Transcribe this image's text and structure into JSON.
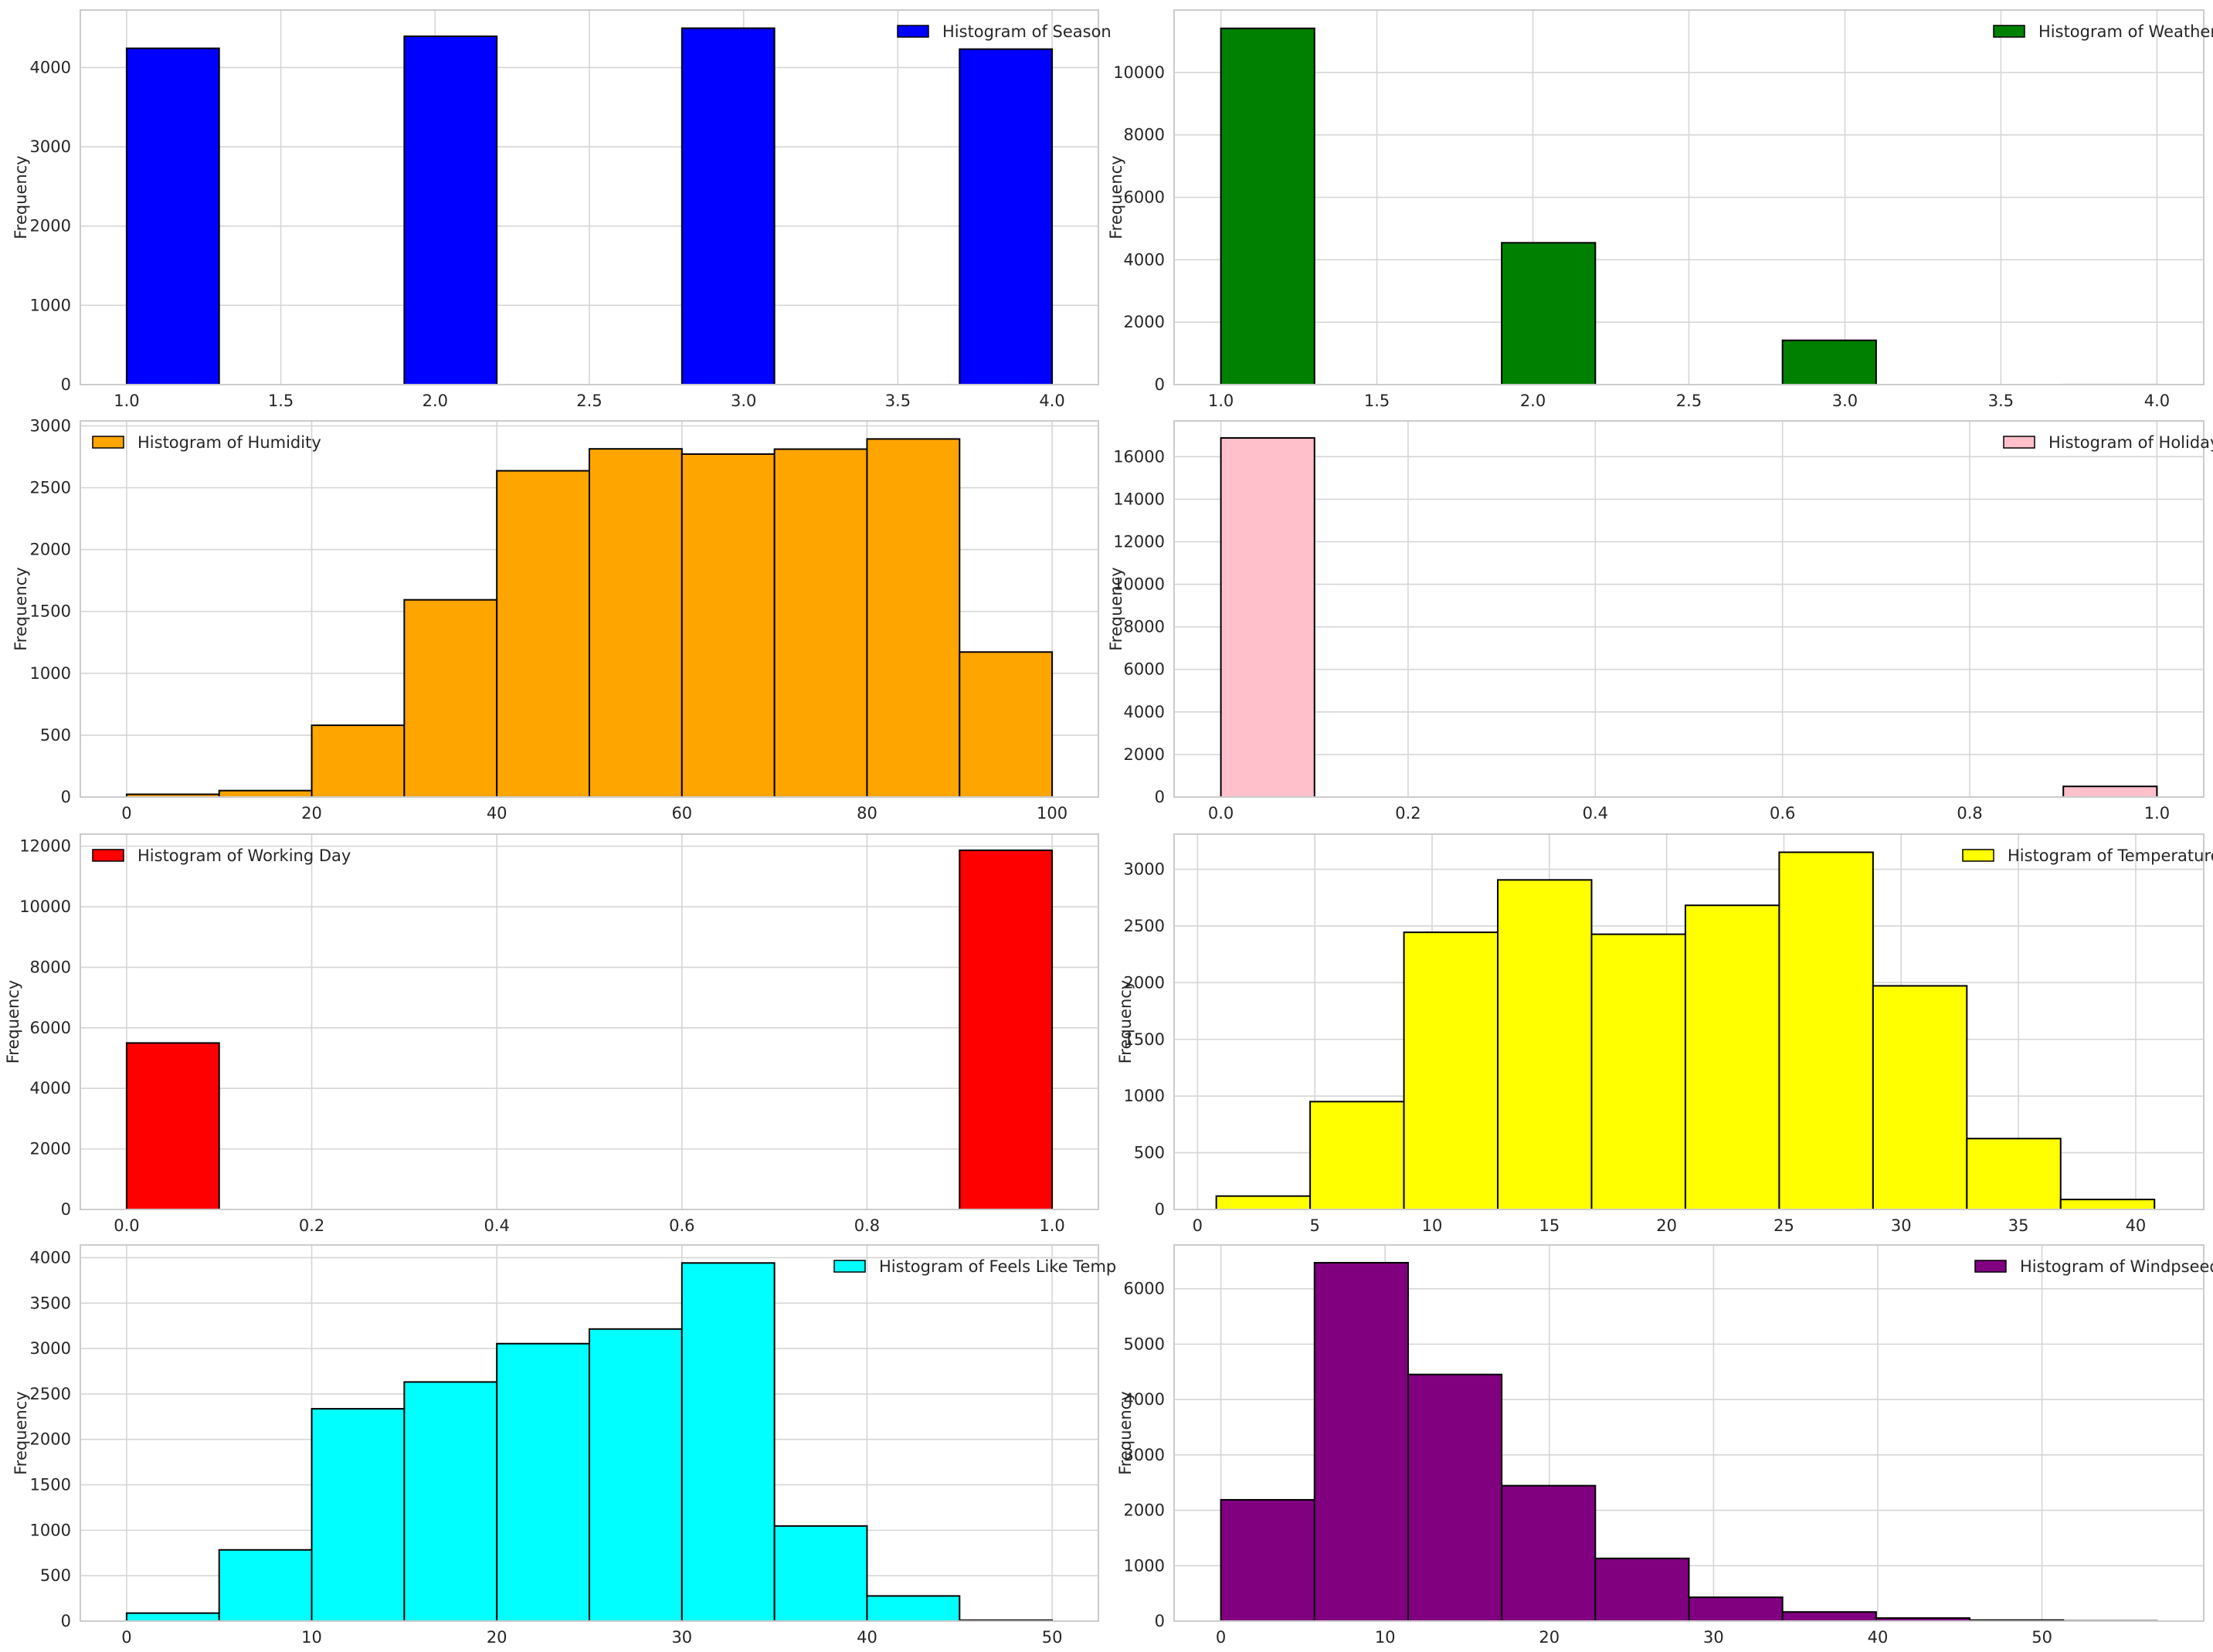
{
  "chart_data": [
    {
      "type": "bar",
      "legend": "Histogram of Season",
      "legend_position": "top-right",
      "color": "#0000ff",
      "ylabel": "Frequency",
      "grid": true,
      "xlim": [
        0.85,
        4.15
      ],
      "ylim": [
        0,
        4725
      ],
      "xticks": [
        1.0,
        1.5,
        2.0,
        2.5,
        3.0,
        3.5,
        4.0
      ],
      "xtick_labels": [
        "1.0",
        "1.5",
        "2.0",
        "2.5",
        "3.0",
        "3.5",
        "4.0"
      ],
      "yticks": [
        0,
        1000,
        2000,
        3000,
        4000
      ],
      "ytick_labels": [
        "0",
        "1000",
        "2000",
        "3000",
        "4000"
      ],
      "bins": [
        {
          "x0": 1.0,
          "x1": 1.3,
          "count": 4242
        },
        {
          "x0": 1.3,
          "x1": 1.6,
          "count": 0
        },
        {
          "x0": 1.6,
          "x1": 1.9,
          "count": 0
        },
        {
          "x0": 1.9,
          "x1": 2.2,
          "count": 4394
        },
        {
          "x0": 2.2,
          "x1": 2.5,
          "count": 0
        },
        {
          "x0": 2.5,
          "x1": 2.8,
          "count": 0
        },
        {
          "x0": 2.8,
          "x1": 3.1,
          "count": 4496
        },
        {
          "x0": 3.1,
          "x1": 3.4,
          "count": 0
        },
        {
          "x0": 3.4,
          "x1": 3.7,
          "count": 0
        },
        {
          "x0": 3.7,
          "x1": 4.0,
          "count": 4232
        }
      ]
    },
    {
      "type": "bar",
      "legend": "Histogram of Weather",
      "legend_position": "top-right",
      "color": "#008000",
      "ylabel": "Frequency",
      "grid": true,
      "xlim": [
        0.85,
        4.15
      ],
      "ylim": [
        0,
        12000
      ],
      "xticks": [
        1.0,
        1.5,
        2.0,
        2.5,
        3.0,
        3.5,
        4.0
      ],
      "xtick_labels": [
        "1.0",
        "1.5",
        "2.0",
        "2.5",
        "3.0",
        "3.5",
        "4.0"
      ],
      "yticks": [
        0,
        2000,
        4000,
        6000,
        8000,
        10000
      ],
      "ytick_labels": [
        "0",
        "2000",
        "4000",
        "6000",
        "8000",
        "10000"
      ],
      "bins": [
        {
          "x0": 1.0,
          "x1": 1.3,
          "count": 11413
        },
        {
          "x0": 1.3,
          "x1": 1.6,
          "count": 0
        },
        {
          "x0": 1.6,
          "x1": 1.9,
          "count": 0
        },
        {
          "x0": 1.9,
          "x1": 2.2,
          "count": 4544
        },
        {
          "x0": 2.2,
          "x1": 2.5,
          "count": 0
        },
        {
          "x0": 2.5,
          "x1": 2.8,
          "count": 0
        },
        {
          "x0": 2.8,
          "x1": 3.1,
          "count": 1419
        },
        {
          "x0": 3.1,
          "x1": 3.4,
          "count": 0
        },
        {
          "x0": 3.4,
          "x1": 3.7,
          "count": 0
        },
        {
          "x0": 3.7,
          "x1": 4.0,
          "count": 1
        }
      ]
    },
    {
      "type": "bar",
      "legend": "Histogram of Humidity",
      "legend_position": "top-left",
      "color": "#ffa500",
      "ylabel": "Frequency",
      "grid": true,
      "xlim": [
        -5,
        105
      ],
      "ylim": [
        0,
        3040
      ],
      "xticks": [
        0,
        20,
        40,
        60,
        80,
        100
      ],
      "xtick_labels": [
        "0",
        "20",
        "40",
        "60",
        "80",
        "100"
      ],
      "yticks": [
        0,
        500,
        1000,
        1500,
        2000,
        2500,
        3000
      ],
      "ytick_labels": [
        "0",
        "500",
        "1000",
        "1500",
        "2000",
        "2500",
        "3000"
      ],
      "bins": [
        {
          "x0": 0,
          "x1": 10,
          "count": 22
        },
        {
          "x0": 10,
          "x1": 20,
          "count": 52
        },
        {
          "x0": 20,
          "x1": 30,
          "count": 580
        },
        {
          "x0": 30,
          "x1": 40,
          "count": 1594
        },
        {
          "x0": 40,
          "x1": 50,
          "count": 2637
        },
        {
          "x0": 50,
          "x1": 60,
          "count": 2814
        },
        {
          "x0": 60,
          "x1": 70,
          "count": 2772
        },
        {
          "x0": 70,
          "x1": 80,
          "count": 2812
        },
        {
          "x0": 80,
          "x1": 90,
          "count": 2894
        },
        {
          "x0": 90,
          "x1": 100,
          "count": 1172
        }
      ]
    },
    {
      "type": "bar",
      "legend": "Histogram of Holiday",
      "legend_position": "top-right",
      "color": "#ffc0cb",
      "ylabel": "Frequency",
      "grid": true,
      "xlim": [
        -0.05,
        1.05
      ],
      "ylim": [
        0,
        17680
      ],
      "xticks": [
        0.0,
        0.2,
        0.4,
        0.6,
        0.8,
        1.0
      ],
      "xtick_labels": [
        "0.0",
        "0.2",
        "0.4",
        "0.6",
        "0.8",
        "1.0"
      ],
      "yticks": [
        0,
        2000,
        4000,
        6000,
        8000,
        10000,
        12000,
        14000,
        16000
      ],
      "ytick_labels": [
        "0",
        "2000",
        "4000",
        "6000",
        "8000",
        "10000",
        "12000",
        "14000",
        "16000"
      ],
      "bins": [
        {
          "x0": 0.0,
          "x1": 0.1,
          "count": 16879
        },
        {
          "x0": 0.1,
          "x1": 0.2,
          "count": 0
        },
        {
          "x0": 0.2,
          "x1": 0.3,
          "count": 0
        },
        {
          "x0": 0.3,
          "x1": 0.4,
          "count": 0
        },
        {
          "x0": 0.4,
          "x1": 0.5,
          "count": 0
        },
        {
          "x0": 0.5,
          "x1": 0.6,
          "count": 0
        },
        {
          "x0": 0.6,
          "x1": 0.7,
          "count": 0
        },
        {
          "x0": 0.7,
          "x1": 0.8,
          "count": 0
        },
        {
          "x0": 0.8,
          "x1": 0.9,
          "count": 0
        },
        {
          "x0": 0.9,
          "x1": 1.0,
          "count": 500
        }
      ]
    },
    {
      "type": "bar",
      "legend": "Histogram of Working Day",
      "legend_position": "top-left",
      "color": "#ff0000",
      "ylabel": "Frequency",
      "grid": true,
      "xlim": [
        -0.05,
        1.05
      ],
      "ylim": [
        0,
        12400
      ],
      "xticks": [
        0.0,
        0.2,
        0.4,
        0.6,
        0.8,
        1.0
      ],
      "xtick_labels": [
        "0.0",
        "0.2",
        "0.4",
        "0.6",
        "0.8",
        "1.0"
      ],
      "yticks": [
        0,
        2000,
        4000,
        6000,
        8000,
        10000,
        12000
      ],
      "ytick_labels": [
        "0",
        "2000",
        "4000",
        "6000",
        "8000",
        "10000",
        "12000"
      ],
      "bins": [
        {
          "x0": 0.0,
          "x1": 0.1,
          "count": 5500
        },
        {
          "x0": 0.1,
          "x1": 0.2,
          "count": 0
        },
        {
          "x0": 0.2,
          "x1": 0.3,
          "count": 0
        },
        {
          "x0": 0.3,
          "x1": 0.4,
          "count": 0
        },
        {
          "x0": 0.4,
          "x1": 0.5,
          "count": 0
        },
        {
          "x0": 0.5,
          "x1": 0.6,
          "count": 0
        },
        {
          "x0": 0.6,
          "x1": 0.7,
          "count": 0
        },
        {
          "x0": 0.7,
          "x1": 0.8,
          "count": 0
        },
        {
          "x0": 0.8,
          "x1": 0.9,
          "count": 0
        },
        {
          "x0": 0.9,
          "x1": 1.0,
          "count": 11865
        }
      ]
    },
    {
      "type": "bar",
      "legend": "Histogram of Temperature",
      "legend_position": "top-right",
      "color": "#ffff00",
      "ylabel": "Frequency",
      "grid": true,
      "xlim": [
        -1.0,
        42.9
      ],
      "ylim": [
        0,
        3310
      ],
      "xticks": [
        0,
        5,
        10,
        15,
        20,
        25,
        30,
        35,
        40
      ],
      "xtick_labels": [
        "0",
        "5",
        "10",
        "15",
        "20",
        "25",
        "30",
        "35",
        "40"
      ],
      "yticks": [
        0,
        500,
        1000,
        1500,
        2000,
        2500,
        3000
      ],
      "ytick_labels": [
        "0",
        "500",
        "1000",
        "1500",
        "2000",
        "2500",
        "3000"
      ],
      "bins": [
        {
          "x0": 0.8,
          "x1": 4.8,
          "count": 118
        },
        {
          "x0": 4.8,
          "x1": 8.8,
          "count": 951
        },
        {
          "x0": 8.8,
          "x1": 12.8,
          "count": 2444
        },
        {
          "x0": 12.8,
          "x1": 16.8,
          "count": 2906
        },
        {
          "x0": 16.8,
          "x1": 20.8,
          "count": 2427
        },
        {
          "x0": 20.8,
          "x1": 24.8,
          "count": 2682
        },
        {
          "x0": 24.8,
          "x1": 28.8,
          "count": 3150
        },
        {
          "x0": 28.8,
          "x1": 32.8,
          "count": 1972
        },
        {
          "x0": 32.8,
          "x1": 36.8,
          "count": 625
        },
        {
          "x0": 36.8,
          "x1": 40.8,
          "count": 88
        }
      ]
    },
    {
      "type": "bar",
      "legend": "Histogram of Feels Like Temp",
      "legend_position": "top-right",
      "color": "#00ffff",
      "ylabel": "Frequency",
      "grid": true,
      "xlim": [
        -2.5,
        52.5
      ],
      "ylim": [
        0,
        4140
      ],
      "xticks": [
        0,
        10,
        20,
        30,
        40,
        50
      ],
      "xtick_labels": [
        "0",
        "10",
        "20",
        "30",
        "40",
        "50"
      ],
      "yticks": [
        0,
        500,
        1000,
        1500,
        2000,
        2500,
        3000,
        3500,
        4000
      ],
      "ytick_labels": [
        "0",
        "500",
        "1000",
        "1500",
        "2000",
        "2500",
        "3000",
        "3500",
        "4000"
      ],
      "bins": [
        {
          "x0": 0,
          "x1": 5,
          "count": 88
        },
        {
          "x0": 5,
          "x1": 10,
          "count": 784
        },
        {
          "x0": 10,
          "x1": 15,
          "count": 2337
        },
        {
          "x0": 15,
          "x1": 20,
          "count": 2632
        },
        {
          "x0": 20,
          "x1": 25,
          "count": 3054
        },
        {
          "x0": 25,
          "x1": 30,
          "count": 3215
        },
        {
          "x0": 30,
          "x1": 35,
          "count": 3942
        },
        {
          "x0": 35,
          "x1": 40,
          "count": 1047
        },
        {
          "x0": 40,
          "x1": 45,
          "count": 277
        },
        {
          "x0": 45,
          "x1": 50,
          "count": 10
        }
      ]
    },
    {
      "type": "bar",
      "legend": "Histogram of Windpseed",
      "legend_position": "top-right",
      "color": "#800080",
      "ylabel": "Frequency",
      "grid": true,
      "xlim": [
        -2.85,
        59.85
      ],
      "ylim": [
        0,
        6790
      ],
      "xticks": [
        0,
        10,
        20,
        30,
        40,
        50
      ],
      "xtick_labels": [
        "0",
        "10",
        "20",
        "30",
        "40",
        "50"
      ],
      "yticks": [
        0,
        1000,
        2000,
        3000,
        4000,
        5000,
        6000
      ],
      "ytick_labels": [
        "0",
        "1000",
        "2000",
        "3000",
        "4000",
        "5000",
        "6000"
      ],
      "bins": [
        {
          "x0": 0,
          "x1": 5.7,
          "count": 2190
        },
        {
          "x0": 5.7,
          "x1": 11.4,
          "count": 6470
        },
        {
          "x0": 11.4,
          "x1": 17.1,
          "count": 4452
        },
        {
          "x0": 17.1,
          "x1": 22.8,
          "count": 2445
        },
        {
          "x0": 22.8,
          "x1": 28.5,
          "count": 1132
        },
        {
          "x0": 28.5,
          "x1": 34.2,
          "count": 430
        },
        {
          "x0": 34.2,
          "x1": 39.9,
          "count": 165
        },
        {
          "x0": 39.9,
          "x1": 45.6,
          "count": 55
        },
        {
          "x0": 45.6,
          "x1": 51.3,
          "count": 18
        },
        {
          "x0": 51.3,
          "x1": 57.0,
          "count": 5
        }
      ]
    }
  ]
}
